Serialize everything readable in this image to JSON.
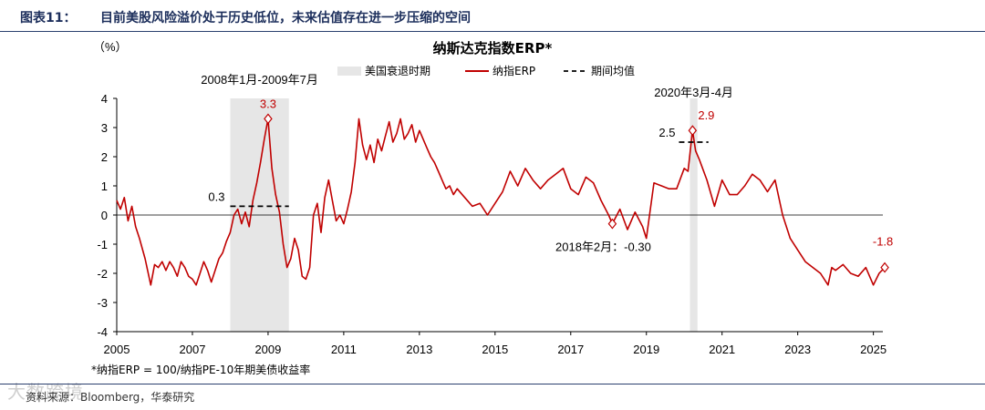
{
  "header": {
    "label": "图表11：",
    "title": "目前美股风险溢价处于历史低位，未来估值存在进一步压缩的空间"
  },
  "source": "资料来源：Bloomberg，华泰研究",
  "watermark": "大数跨境",
  "colors": {
    "line": "#c00000",
    "shade": "#e6e6e6",
    "header": "#1d2f5c",
    "avg": "#000000"
  },
  "chart_data": {
    "type": "line",
    "title": "纳斯达克指数ERP*",
    "ylabel": "（%）",
    "ylim": [
      -4,
      4
    ],
    "yticks": [
      4,
      3,
      2,
      1,
      0,
      -1,
      -2,
      -3,
      -4
    ],
    "xlim": [
      2005,
      2025.5
    ],
    "xticks": [
      "2005",
      "2007",
      "2009",
      "2011",
      "2013",
      "2015",
      "2017",
      "2019",
      "2021",
      "2023",
      "2025"
    ],
    "footnote": "*纳指ERP = 100/纳指PE-10年期美债收益率",
    "legend": {
      "recession": "美国衰退时期",
      "series": "纳指ERP",
      "average": "期间均值"
    },
    "recessions": [
      {
        "label": "2008年1月-2009年7月",
        "start": 2008.0,
        "end": 2009.55,
        "avg": 0.3,
        "avg_label": "0.3",
        "peak": 3.3,
        "peak_label": "3.3",
        "peak_x": 2009.0
      },
      {
        "label": "2020年3月-4月",
        "start": 2020.15,
        "end": 2020.35,
        "avg": 2.5,
        "avg_label": "2.5",
        "peak": 2.9,
        "peak_label": "2.9",
        "peak_x": 2020.22
      }
    ],
    "points": [
      {
        "x": 2018.1,
        "y": -0.3,
        "label": "2018年2月：-0.30"
      },
      {
        "x": 2025.3,
        "y": -1.8,
        "label": "-1.8"
      }
    ],
    "series": [
      {
        "name": "纳指ERP",
        "x": [
          2005.0,
          2005.1,
          2005.2,
          2005.3,
          2005.4,
          2005.5,
          2005.6,
          2005.75,
          2005.9,
          2006.0,
          2006.1,
          2006.2,
          2006.3,
          2006.4,
          2006.5,
          2006.6,
          2006.7,
          2006.8,
          2006.9,
          2007.0,
          2007.1,
          2007.2,
          2007.3,
          2007.4,
          2007.5,
          2007.6,
          2007.7,
          2007.8,
          2007.9,
          2008.0,
          2008.1,
          2008.2,
          2008.3,
          2008.4,
          2008.5,
          2008.6,
          2008.7,
          2008.8,
          2008.9,
          2009.0,
          2009.1,
          2009.2,
          2009.3,
          2009.4,
          2009.5,
          2009.6,
          2009.7,
          2009.8,
          2009.9,
          2010.0,
          2010.1,
          2010.2,
          2010.3,
          2010.4,
          2010.5,
          2010.6,
          2010.7,
          2010.8,
          2010.9,
          2011.0,
          2011.1,
          2011.2,
          2011.3,
          2011.4,
          2011.5,
          2011.6,
          2011.7,
          2011.8,
          2011.9,
          2012.0,
          2012.1,
          2012.2,
          2012.3,
          2012.4,
          2012.5,
          2012.6,
          2012.7,
          2012.8,
          2012.9,
          2013.0,
          2013.1,
          2013.2,
          2013.3,
          2013.4,
          2013.5,
          2013.6,
          2013.7,
          2013.8,
          2013.9,
          2014.0,
          2014.2,
          2014.4,
          2014.6,
          2014.8,
          2015.0,
          2015.2,
          2015.4,
          2015.6,
          2015.8,
          2016.0,
          2016.2,
          2016.4,
          2016.6,
          2016.8,
          2017.0,
          2017.2,
          2017.4,
          2017.6,
          2017.8,
          2018.0,
          2018.1,
          2018.3,
          2018.5,
          2018.7,
          2018.9,
          2019.0,
          2019.2,
          2019.4,
          2019.6,
          2019.8,
          2020.0,
          2020.1,
          2020.22,
          2020.3,
          2020.4,
          2020.6,
          2020.8,
          2021.0,
          2021.2,
          2021.4,
          2021.6,
          2021.8,
          2022.0,
          2022.2,
          2022.4,
          2022.6,
          2022.8,
          2023.0,
          2023.2,
          2023.4,
          2023.6,
          2023.8,
          2023.9,
          2024.0,
          2024.2,
          2024.4,
          2024.6,
          2024.8,
          2025.0,
          2025.15,
          2025.3
        ],
        "y": [
          0.5,
          0.2,
          0.6,
          -0.2,
          0.3,
          -0.4,
          -0.8,
          -1.5,
          -2.4,
          -1.7,
          -1.8,
          -1.6,
          -1.9,
          -1.6,
          -1.8,
          -2.1,
          -1.6,
          -1.8,
          -2.1,
          -2.2,
          -2.4,
          -2.0,
          -1.6,
          -1.9,
          -2.3,
          -1.9,
          -1.5,
          -1.3,
          -0.9,
          -0.6,
          0.0,
          0.2,
          -0.3,
          0.1,
          -0.4,
          0.5,
          1.1,
          1.8,
          2.6,
          3.3,
          1.6,
          0.7,
          0.1,
          -1.0,
          -1.8,
          -1.5,
          -0.8,
          -1.2,
          -2.1,
          -2.2,
          -1.8,
          0.0,
          0.4,
          -0.6,
          0.6,
          1.2,
          0.5,
          -0.2,
          0.0,
          -0.3,
          0.2,
          0.8,
          1.8,
          3.3,
          2.4,
          1.9,
          2.4,
          1.8,
          2.6,
          2.2,
          2.7,
          3.2,
          2.5,
          2.8,
          3.3,
          2.6,
          2.8,
          3.1,
          2.5,
          2.9,
          2.6,
          2.3,
          2.0,
          1.8,
          1.5,
          1.2,
          0.9,
          1.0,
          0.7,
          0.9,
          0.6,
          0.3,
          0.4,
          0.0,
          0.4,
          0.8,
          1.5,
          1.0,
          1.6,
          1.2,
          0.9,
          1.2,
          1.4,
          1.6,
          0.9,
          0.7,
          1.3,
          1.1,
          0.5,
          0.0,
          -0.3,
          0.2,
          -0.5,
          0.1,
          -0.4,
          -0.8,
          1.1,
          1.0,
          0.9,
          0.9,
          1.6,
          1.5,
          2.9,
          2.2,
          1.9,
          1.2,
          0.3,
          1.2,
          0.7,
          0.7,
          1.0,
          1.4,
          1.2,
          0.8,
          1.2,
          0.0,
          -0.8,
          -1.2,
          -1.6,
          -1.8,
          -2.0,
          -2.4,
          -1.8,
          -1.9,
          -1.7,
          -2.0,
          -2.1,
          -1.8,
          -2.4,
          -2.0,
          -1.8
        ]
      }
    ]
  }
}
